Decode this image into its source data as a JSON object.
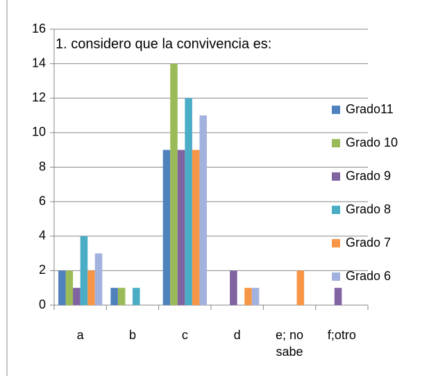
{
  "chart_data": {
    "type": "bar",
    "title": "1. considero que la convivencia es:",
    "categories": [
      "a",
      "b",
      "c",
      "d",
      "e; no sabe",
      "f;otro"
    ],
    "series": [
      {
        "name": "Grado11",
        "color": "#4f81bd",
        "values": [
          2,
          1,
          9,
          0,
          0,
          0
        ]
      },
      {
        "name": "Grado 10",
        "color": "#9bbb59",
        "values": [
          2,
          1,
          14,
          0,
          0,
          0
        ]
      },
      {
        "name": "Grado 9",
        "color": "#8064a2",
        "values": [
          1,
          0,
          9,
          2,
          0,
          1
        ]
      },
      {
        "name": "Grado 8",
        "color": "#4bacc6",
        "values": [
          4,
          1,
          12,
          0,
          0,
          0
        ]
      },
      {
        "name": "Grado 7",
        "color": "#f79646",
        "values": [
          2,
          0,
          9,
          1,
          2,
          0
        ]
      },
      {
        "name": "Grado 6",
        "color": "#a2b2de",
        "values": [
          3,
          0,
          11,
          1,
          0,
          0
        ]
      }
    ],
    "ylim": [
      0,
      16
    ],
    "yticks": [
      0,
      2,
      4,
      6,
      8,
      10,
      12,
      14,
      16
    ],
    "grid": true,
    "legend": "right"
  }
}
